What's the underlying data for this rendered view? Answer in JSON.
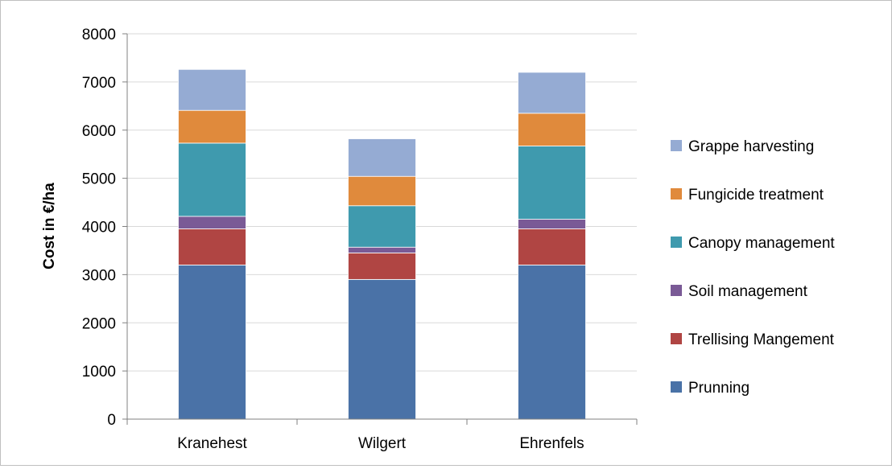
{
  "chart_data": {
    "type": "bar",
    "stacked": true,
    "categories": [
      "Kranehest",
      "Wilgert",
      "Ehrenfels"
    ],
    "series": [
      {
        "name": "Prunning",
        "values": [
          3200,
          2900,
          3200
        ],
        "color": "#4a72a7"
      },
      {
        "name": "Trellising Mangement",
        "values": [
          750,
          550,
          750
        ],
        "color": "#b04543"
      },
      {
        "name": "Soil management",
        "values": [
          260,
          120,
          200
        ],
        "color": "#7a5a96"
      },
      {
        "name": "Canopy management",
        "values": [
          1520,
          860,
          1520
        ],
        "color": "#3f9aae"
      },
      {
        "name": "Fungicide treatment",
        "values": [
          680,
          610,
          680
        ],
        "color": "#e08a3c"
      },
      {
        "name": "Grappe harvesting",
        "values": [
          850,
          780,
          850
        ],
        "color": "#95abd3"
      }
    ],
    "ylabel": "Cost in €/ha",
    "xlabel": "",
    "ylim": [
      0,
      8000
    ],
    "yticks": [
      0,
      1000,
      2000,
      3000,
      4000,
      5000,
      6000,
      7000,
      8000
    ],
    "grid": true,
    "legend": "right"
  }
}
